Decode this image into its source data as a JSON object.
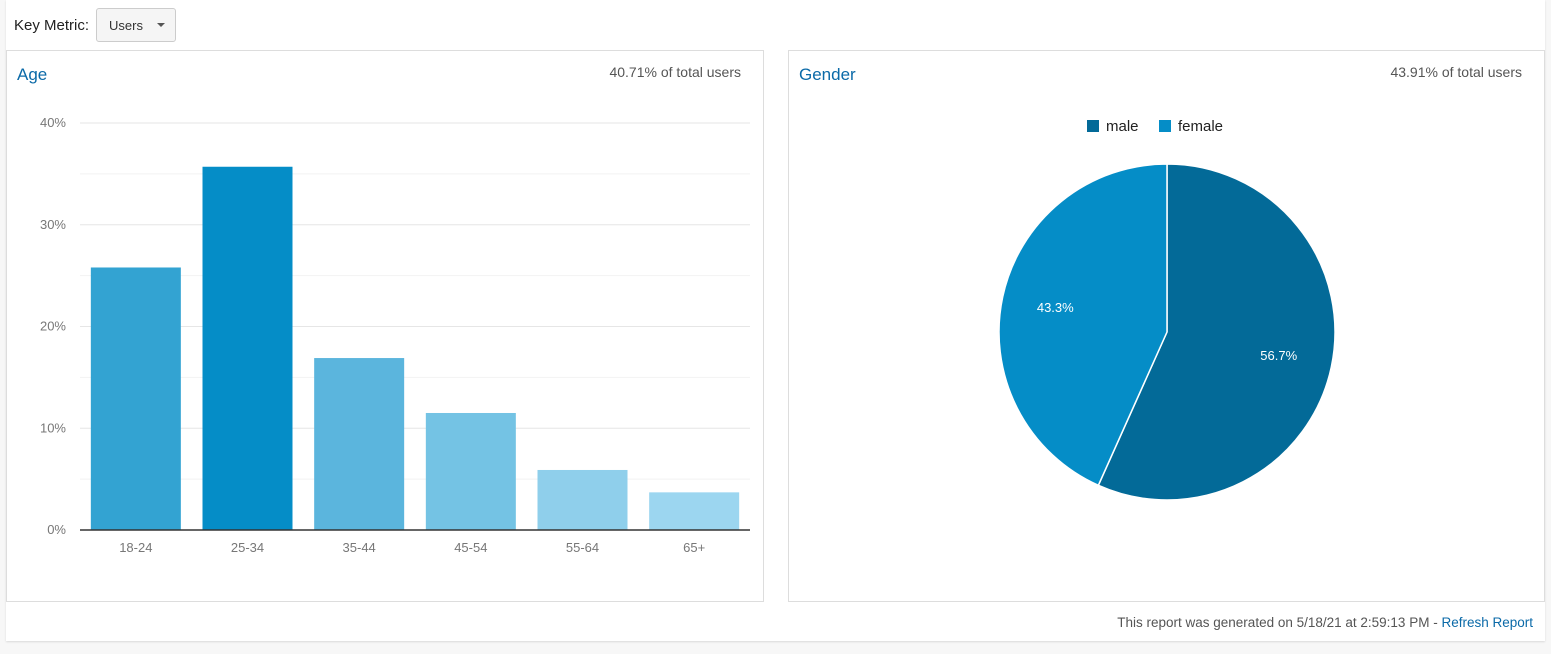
{
  "toolbar": {
    "key_metric_label": "Key Metric:",
    "key_metric_value": "Users"
  },
  "age_panel": {
    "title": "Age",
    "subtitle": "40.71% of total users"
  },
  "gender_panel": {
    "title": "Gender",
    "subtitle": "43.91% of total users"
  },
  "footer": {
    "text": "This report was generated on 5/18/21 at 2:59:13 PM - ",
    "refresh_link": "Refresh Report"
  },
  "colors": {
    "link": "#0b6aa8",
    "male": "#036a98",
    "female": "#058dc7"
  },
  "chart_data": [
    {
      "type": "bar",
      "title": "Age",
      "categories": [
        "18-24",
        "25-34",
        "35-44",
        "45-54",
        "55-64",
        "65+"
      ],
      "values": [
        25.8,
        35.7,
        16.9,
        11.5,
        5.9,
        3.7
      ],
      "bar_colors": [
        "#33a3d2",
        "#058dc7",
        "#5bb5dd",
        "#74c3e4",
        "#8fcfeb",
        "#9cd6f0"
      ],
      "yticks": [
        "0%",
        "10%",
        "20%",
        "30%",
        "40%"
      ],
      "ylim": [
        0,
        40
      ],
      "xlabel": "",
      "ylabel": "",
      "grid": true
    },
    {
      "type": "pie",
      "title": "Gender",
      "legend": [
        "male",
        "female"
      ],
      "legend_position": "top",
      "slices": [
        {
          "label": "male",
          "value": 56.7,
          "display": "56.7%",
          "color": "#036a98"
        },
        {
          "label": "female",
          "value": 43.3,
          "display": "43.3%",
          "color": "#058dc7"
        }
      ]
    }
  ]
}
